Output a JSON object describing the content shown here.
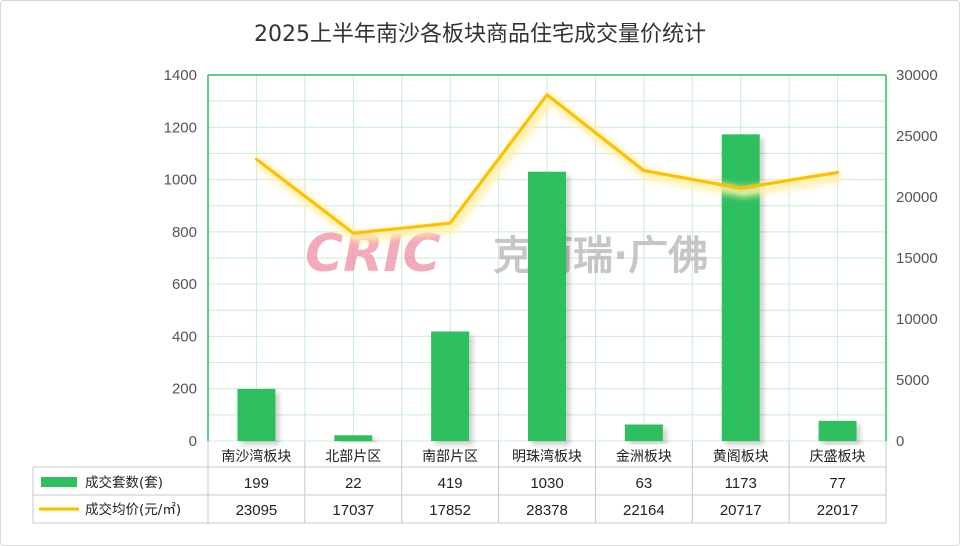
{
  "chart_data": {
    "type": "bar",
    "title": "2025上半年南沙各板块商品住宅成交量价统计",
    "categories": [
      "南沙湾板块",
      "北部片区",
      "南部片区",
      "明珠湾板块",
      "金洲板块",
      "黄阁板块",
      "庆盛板块"
    ],
    "series": [
      {
        "name": "成交套数(套)",
        "type": "bar",
        "axis": "left",
        "color": "#2ebf5e",
        "values": [
          199,
          22,
          419,
          1030,
          63,
          1173,
          77
        ],
        "labels": [
          "199",
          "22",
          "419",
          "1030",
          "63",
          "1173",
          "77"
        ]
      },
      {
        "name": "成交均价(元/㎡)",
        "type": "line",
        "axis": "right",
        "color": "#ffc000",
        "values": [
          23095,
          17037,
          17852,
          28378,
          22164,
          20717,
          22017
        ],
        "labels": [
          "23095",
          "17037",
          "17852",
          "28378",
          "22164",
          "20717",
          "22017"
        ]
      }
    ],
    "y_left": {
      "min": 0,
      "max": 1400,
      "ticks": [
        "0",
        "200",
        "400",
        "600",
        "800",
        "1000",
        "1200",
        "1400"
      ]
    },
    "y_right": {
      "min": 0,
      "max": 30000,
      "ticks": [
        "0",
        "5000",
        "10000",
        "15000",
        "20000",
        "25000",
        "30000"
      ]
    },
    "grid": true,
    "legend": "data-table"
  },
  "watermark": {
    "latin": "CRIC",
    "cjk": "克而瑞·广佛"
  }
}
